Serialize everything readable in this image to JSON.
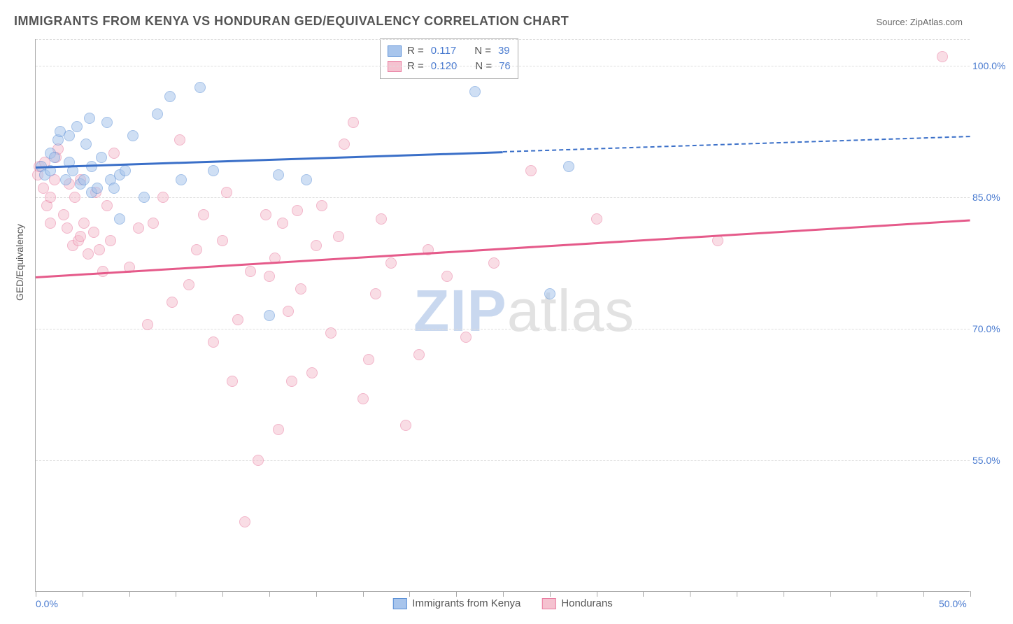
{
  "title": "IMMIGRANTS FROM KENYA VS HONDURAN GED/EQUIVALENCY CORRELATION CHART",
  "source_prefix": "Source: ",
  "source_name": "ZipAtlas.com",
  "ylabel": "GED/Equivalency",
  "watermark_a": "ZIP",
  "watermark_b": "atlas",
  "chart": {
    "type": "scatter",
    "xlim": [
      0,
      50
    ],
    "ylim": [
      40,
      103
    ],
    "background_color": "#ffffff",
    "grid_color": "#dddddd",
    "axis_color": "#aaaaaa",
    "tick_color": "#4a7bd0",
    "xtick_positions": [
      0,
      2.5,
      5,
      7.5,
      10,
      12.5,
      15,
      17.5,
      20,
      22.5,
      25,
      27.5,
      30,
      32.5,
      35,
      37.5,
      40,
      42.5,
      45,
      47.5,
      50
    ],
    "xtick_labels": {
      "0": "0.0%",
      "50": "50.0%"
    },
    "ytick_positions": [
      55,
      70,
      85,
      100
    ],
    "ytick_labels": {
      "55": "55.0%",
      "70": "70.0%",
      "85": "85.0%",
      "100": "100.0%"
    },
    "gridline_extra": 103,
    "marker_radius": 8,
    "marker_opacity": 0.55,
    "trendline_width": 2.5,
    "trendline_dash_after_x": 25
  },
  "stats": {
    "r_label": "R =",
    "n_label": "N =",
    "rows": [
      {
        "swatch": "kenya",
        "r": "0.117",
        "n": "39"
      },
      {
        "swatch": "honduras",
        "r": "0.120",
        "n": "76"
      }
    ]
  },
  "series": {
    "kenya": {
      "label": "Immigrants from Kenya",
      "fill": "#a8c5ec",
      "border": "#5a8fd6",
      "line": "#3a6fc8",
      "trend": {
        "x1": 0,
        "y1": 88.5,
        "x2": 50,
        "y2": 92.0
      },
      "points": [
        [
          0.3,
          88.5
        ],
        [
          0.5,
          87.5
        ],
        [
          0.8,
          88.0
        ],
        [
          0.8,
          90.0
        ],
        [
          1.0,
          89.5
        ],
        [
          1.2,
          91.5
        ],
        [
          1.3,
          92.5
        ],
        [
          1.6,
          87.0
        ],
        [
          1.8,
          89.0
        ],
        [
          1.8,
          92.0
        ],
        [
          2.0,
          88.0
        ],
        [
          2.2,
          93.0
        ],
        [
          2.4,
          86.5
        ],
        [
          2.6,
          87.0
        ],
        [
          2.7,
          91.0
        ],
        [
          2.9,
          94.0
        ],
        [
          3.0,
          88.5
        ],
        [
          3.0,
          85.5
        ],
        [
          3.3,
          86.0
        ],
        [
          3.5,
          89.5
        ],
        [
          3.8,
          93.5
        ],
        [
          4.0,
          87.0
        ],
        [
          4.2,
          86.0
        ],
        [
          4.5,
          82.5
        ],
        [
          4.5,
          87.5
        ],
        [
          4.8,
          88.0
        ],
        [
          5.2,
          92.0
        ],
        [
          5.8,
          85.0
        ],
        [
          6.5,
          94.5
        ],
        [
          7.2,
          96.5
        ],
        [
          7.8,
          87.0
        ],
        [
          8.8,
          97.5
        ],
        [
          9.5,
          88.0
        ],
        [
          12.5,
          71.5
        ],
        [
          13.0,
          87.5
        ],
        [
          14.5,
          87.0
        ],
        [
          23.5,
          97.0
        ],
        [
          27.5,
          74.0
        ],
        [
          28.5,
          88.5
        ]
      ]
    },
    "honduras": {
      "label": "Hondurans",
      "fill": "#f5c2d0",
      "border": "#e97ba0",
      "line": "#e55a8a",
      "trend": {
        "x1": 0,
        "y1": 76.0,
        "x2": 50,
        "y2": 82.5
      },
      "points": [
        [
          0.1,
          87.5
        ],
        [
          0.2,
          88.5
        ],
        [
          0.4,
          86.0
        ],
        [
          0.5,
          89.0
        ],
        [
          0.6,
          84.0
        ],
        [
          0.8,
          85.0
        ],
        [
          0.8,
          82.0
        ],
        [
          1.0,
          87.0
        ],
        [
          1.1,
          89.5
        ],
        [
          1.2,
          90.5
        ],
        [
          1.5,
          83.0
        ],
        [
          1.7,
          81.5
        ],
        [
          1.8,
          86.5
        ],
        [
          2.0,
          79.5
        ],
        [
          2.1,
          85.0
        ],
        [
          2.3,
          80.0
        ],
        [
          2.4,
          87.0
        ],
        [
          2.4,
          80.5
        ],
        [
          2.6,
          82.0
        ],
        [
          2.8,
          78.5
        ],
        [
          3.1,
          81.0
        ],
        [
          3.2,
          85.5
        ],
        [
          3.4,
          79.0
        ],
        [
          3.6,
          76.5
        ],
        [
          3.8,
          84.0
        ],
        [
          4.0,
          80.0
        ],
        [
          4.2,
          90.0
        ],
        [
          5.0,
          77.0
        ],
        [
          5.5,
          81.5
        ],
        [
          6.0,
          70.5
        ],
        [
          6.3,
          82.0
        ],
        [
          6.8,
          85.0
        ],
        [
          7.3,
          73.0
        ],
        [
          7.7,
          91.5
        ],
        [
          8.2,
          75.0
        ],
        [
          8.6,
          79.0
        ],
        [
          9.0,
          83.0
        ],
        [
          9.5,
          68.5
        ],
        [
          10.0,
          80.0
        ],
        [
          10.5,
          64.0
        ],
        [
          10.8,
          71.0
        ],
        [
          11.2,
          48.0
        ],
        [
          11.5,
          76.5
        ],
        [
          11.9,
          55.0
        ],
        [
          12.3,
          83.0
        ],
        [
          12.8,
          78.0
        ],
        [
          13.0,
          58.5
        ],
        [
          13.2,
          82.0
        ],
        [
          13.5,
          72.0
        ],
        [
          13.7,
          64.0
        ],
        [
          14.0,
          83.5
        ],
        [
          14.2,
          74.5
        ],
        [
          14.8,
          65.0
        ],
        [
          15.0,
          79.5
        ],
        [
          15.3,
          84.0
        ],
        [
          15.8,
          69.5
        ],
        [
          16.2,
          80.5
        ],
        [
          16.5,
          91.0
        ],
        [
          17.0,
          93.5
        ],
        [
          17.5,
          62.0
        ],
        [
          17.8,
          66.5
        ],
        [
          18.2,
          74.0
        ],
        [
          18.5,
          82.5
        ],
        [
          19.0,
          77.5
        ],
        [
          19.8,
          59.0
        ],
        [
          20.5,
          67.0
        ],
        [
          21.0,
          79.0
        ],
        [
          22.0,
          76.0
        ],
        [
          23.0,
          69.0
        ],
        [
          24.5,
          77.5
        ],
        [
          26.5,
          88.0
        ],
        [
          30.0,
          82.5
        ],
        [
          36.5,
          80.0
        ],
        [
          48.5,
          101.0
        ],
        [
          12.5,
          76.0
        ],
        [
          10.2,
          85.5
        ]
      ]
    }
  },
  "legend": [
    {
      "swatch": "kenya",
      "key": "series.kenya.label"
    },
    {
      "swatch": "honduras",
      "key": "series.honduras.label"
    }
  ]
}
